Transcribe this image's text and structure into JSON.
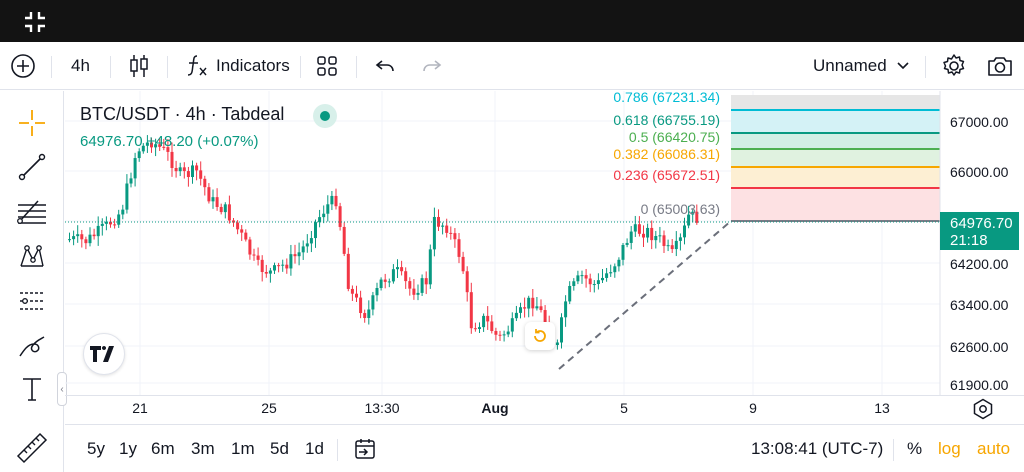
{
  "toolbar": {
    "interval": "4h",
    "indicators_label": "Indicators",
    "layout_name": "Unnamed",
    "icons": [
      "plus-circle-icon",
      "candles-icon",
      "fx-icon",
      "layout-grid-icon",
      "undo-icon",
      "redo-icon",
      "chevron-down-icon",
      "gear-icon",
      "camera-icon"
    ]
  },
  "legend": {
    "title": "BTC/USDT · 4h · Tabdeal",
    "values": "64976.70  +48.20 (+0.07%)"
  },
  "fib_levels": [
    {
      "label": "0.786 (67231.34)",
      "color": "#00bcd4"
    },
    {
      "label": "0.618 (66755.19)",
      "color": "#089981"
    },
    {
      "label": "0.5 (66420.75)",
      "color": "#4caf50"
    },
    {
      "label": "0.382 (66086.31)",
      "color": "#f7a600"
    },
    {
      "label": "0.236 (65672.51)",
      "color": "#f23645"
    },
    {
      "label": "0 (65003.63)",
      "color": "#787b86"
    }
  ],
  "price_axis": {
    "labels": [
      "67000.00",
      "66000.00",
      "64200.00",
      "63400.00",
      "62600.00",
      "61900.00"
    ],
    "current_price": "64976.70",
    "countdown": "21:18"
  },
  "time_axis": {
    "labels": [
      "21",
      "25",
      "13:30",
      "Aug",
      "5",
      "9",
      "13"
    ]
  },
  "bottom": {
    "ranges": [
      "5y",
      "1y",
      "6m",
      "3m",
      "1m",
      "5d",
      "1d"
    ],
    "clock": "13:08:41 (UTC-7)",
    "percent": "%",
    "log": "log",
    "auto": "auto"
  },
  "colors": {
    "up": "#089981",
    "down": "#f23645",
    "accent": "#f7a600"
  }
}
